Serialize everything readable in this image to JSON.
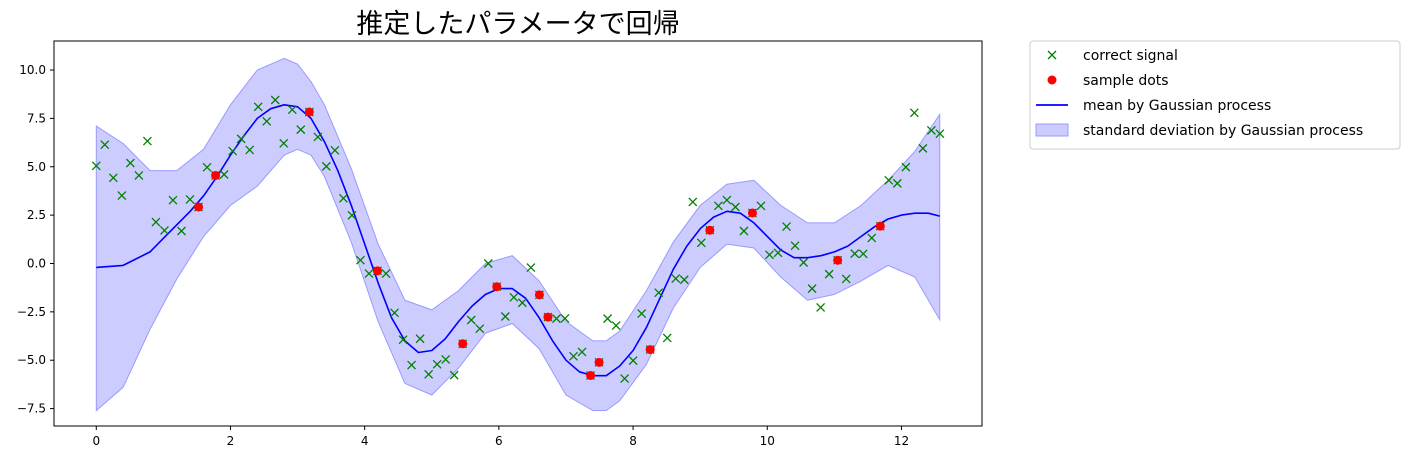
{
  "chart_data": {
    "type": "line",
    "title": "推定したパラメータで回帰",
    "xlabel": "",
    "ylabel": "",
    "xlim": [
      -0.63,
      13.2
    ],
    "ylim": [
      -8.4,
      11.5
    ],
    "xticks": [
      0,
      2,
      4,
      6,
      8,
      10,
      12
    ],
    "yticks": [
      -7.5,
      -5.0,
      -2.5,
      0.0,
      2.5,
      5.0,
      7.5,
      10.0
    ],
    "ytick_labels": [
      "−7.5",
      "−5.0",
      "−2.5",
      "0.0",
      "2.5",
      "5.0",
      "7.5",
      "10.0"
    ],
    "grid": false,
    "legend_position": "outside-top-right",
    "colors": {
      "correct": "#008000",
      "sample": "#ff0000",
      "mean": "#0000ff",
      "band_fill": "#ccccff",
      "band_edge": "#9999ff"
    },
    "series": [
      {
        "name": "correct signal",
        "kind": "scatter",
        "marker": "x",
        "x": [
          0.0,
          0.127,
          0.254,
          0.381,
          0.508,
          0.635,
          0.762,
          0.889,
          1.016,
          1.143,
          1.27,
          1.397,
          1.524,
          1.651,
          1.778,
          1.905,
          2.032,
          2.159,
          2.286,
          2.413,
          2.54,
          2.667,
          2.794,
          2.921,
          3.048,
          3.175,
          3.302,
          3.429,
          3.556,
          3.683,
          3.81,
          3.937,
          4.064,
          4.191,
          4.318,
          4.445,
          4.572,
          4.699,
          4.826,
          4.953,
          5.08,
          5.207,
          5.334,
          5.461,
          5.588,
          5.715,
          5.842,
          5.969,
          6.096,
          6.223,
          6.35,
          6.477,
          6.604,
          6.731,
          6.858,
          6.985,
          7.112,
          7.239,
          7.366,
          7.493,
          7.62,
          7.747,
          7.874,
          8.001,
          8.128,
          8.255,
          8.382,
          8.509,
          8.636,
          8.763,
          8.89,
          9.017,
          9.144,
          9.271,
          9.398,
          9.525,
          9.652,
          9.779,
          9.906,
          10.033,
          10.16,
          10.287,
          10.414,
          10.541,
          10.668,
          10.795,
          10.922,
          11.049,
          11.176,
          11.303,
          11.43,
          11.557,
          11.684,
          11.811,
          11.938,
          12.065,
          12.192,
          12.319,
          12.446,
          12.573
        ],
        "y": [
          5.05,
          6.14,
          4.43,
          3.51,
          5.19,
          4.55,
          6.33,
          2.14,
          1.71,
          3.27,
          1.68,
          3.31,
          2.92,
          4.97,
          4.55,
          4.6,
          5.81,
          6.44,
          5.87,
          8.1,
          7.35,
          8.45,
          6.21,
          7.95,
          6.92,
          7.83,
          6.54,
          5.02,
          5.85,
          3.37,
          2.49,
          0.17,
          -0.52,
          -0.38,
          -0.52,
          -2.55,
          -3.94,
          -5.25,
          -3.89,
          -5.73,
          -5.21,
          -4.96,
          -5.77,
          -4.15,
          -2.92,
          -3.37,
          0.0,
          -1.2,
          -2.74,
          -1.75,
          -2.03,
          -0.21,
          -1.62,
          -2.77,
          -2.85,
          -2.84,
          -4.8,
          -4.57,
          -5.79,
          -5.11,
          -2.85,
          -3.21,
          -5.95,
          -5.02,
          -2.59,
          -4.45,
          -1.51,
          -3.85,
          -0.78,
          -0.84,
          3.18,
          1.07,
          1.72,
          2.98,
          3.28,
          2.92,
          1.68,
          2.61,
          2.98,
          0.45,
          0.55,
          1.91,
          0.92,
          0.05,
          -1.3,
          -2.27,
          -0.55,
          0.17,
          -0.8,
          0.51,
          0.5,
          1.32,
          1.93,
          4.3,
          4.14,
          4.98,
          7.79,
          5.95,
          6.88,
          6.71
        ]
      },
      {
        "name": "sample dots",
        "kind": "scatter",
        "marker": "o",
        "x": [
          1.524,
          1.778,
          3.175,
          4.191,
          5.461,
          5.969,
          6.604,
          6.731,
          7.366,
          7.493,
          8.255,
          9.144,
          9.779,
          11.049,
          11.684
        ],
        "y": [
          2.92,
          4.55,
          7.83,
          -0.38,
          -4.15,
          -1.2,
          -1.62,
          -2.77,
          -5.79,
          -5.11,
          -4.45,
          1.72,
          2.61,
          0.17,
          1.93
        ]
      },
      {
        "name": "mean by Gaussian process",
        "kind": "line",
        "x": [
          0.0,
          0.4,
          0.8,
          1.0,
          1.2,
          1.4,
          1.6,
          1.8,
          2.0,
          2.2,
          2.4,
          2.6,
          2.8,
          3.0,
          3.2,
          3.4,
          3.6,
          3.8,
          4.0,
          4.2,
          4.4,
          4.6,
          4.8,
          5.0,
          5.2,
          5.4,
          5.6,
          5.8,
          6.0,
          6.2,
          6.4,
          6.6,
          6.8,
          7.0,
          7.2,
          7.4,
          7.6,
          7.8,
          8.0,
          8.2,
          8.4,
          8.6,
          8.8,
          9.0,
          9.2,
          9.4,
          9.6,
          9.8,
          10.0,
          10.2,
          10.4,
          10.6,
          10.8,
          11.0,
          11.2,
          11.4,
          11.6,
          11.8,
          12.0,
          12.2,
          12.4,
          12.57
        ],
        "y": [
          -0.2,
          -0.1,
          0.6,
          1.3,
          2.0,
          2.7,
          3.5,
          4.5,
          5.6,
          6.6,
          7.5,
          8.0,
          8.2,
          8.1,
          7.5,
          6.3,
          4.8,
          3.0,
          1.0,
          -1.0,
          -2.8,
          -4.0,
          -4.6,
          -4.5,
          -3.9,
          -3.0,
          -2.2,
          -1.6,
          -1.3,
          -1.3,
          -1.8,
          -2.8,
          -4.0,
          -5.0,
          -5.6,
          -5.8,
          -5.8,
          -5.3,
          -4.5,
          -3.3,
          -1.8,
          -0.3,
          0.9,
          1.8,
          2.4,
          2.7,
          2.6,
          2.1,
          1.4,
          0.7,
          0.3,
          0.3,
          0.4,
          0.6,
          0.9,
          1.4,
          1.9,
          2.3,
          2.5,
          2.6,
          2.6,
          2.45
        ]
      },
      {
        "name": "standard deviation by Gaussian process",
        "kind": "band",
        "x": [
          0.0,
          0.4,
          0.8,
          1.2,
          1.6,
          2.0,
          2.4,
          2.8,
          3.0,
          3.2,
          3.4,
          3.8,
          4.2,
          4.6,
          5.0,
          5.4,
          5.8,
          6.2,
          6.6,
          7.0,
          7.4,
          7.6,
          7.8,
          8.2,
          8.6,
          9.0,
          9.4,
          9.8,
          10.2,
          10.6,
          11.0,
          11.4,
          11.8,
          12.2,
          12.57
        ],
        "lower": [
          -7.6,
          -6.4,
          -3.4,
          -0.8,
          1.4,
          3.0,
          4.0,
          5.6,
          5.9,
          5.6,
          4.5,
          1.1,
          -3.0,
          -6.2,
          -6.8,
          -5.4,
          -3.6,
          -3.1,
          -4.4,
          -6.8,
          -7.6,
          -7.6,
          -7.1,
          -5.2,
          -2.3,
          -0.2,
          1.0,
          0.8,
          -0.7,
          -1.9,
          -1.6,
          -0.9,
          -0.1,
          -0.7,
          -2.9
        ],
        "upper": [
          7.1,
          6.2,
          4.8,
          4.8,
          5.9,
          8.2,
          10.0,
          10.6,
          10.3,
          9.4,
          8.2,
          4.9,
          1.0,
          -1.9,
          -2.4,
          -1.4,
          0.0,
          0.4,
          -0.9,
          -3.0,
          -4.0,
          -4.0,
          -3.5,
          -1.4,
          1.1,
          3.0,
          4.1,
          4.3,
          3.0,
          2.1,
          2.1,
          3.0,
          4.3,
          5.8,
          7.7
        ]
      }
    ]
  }
}
